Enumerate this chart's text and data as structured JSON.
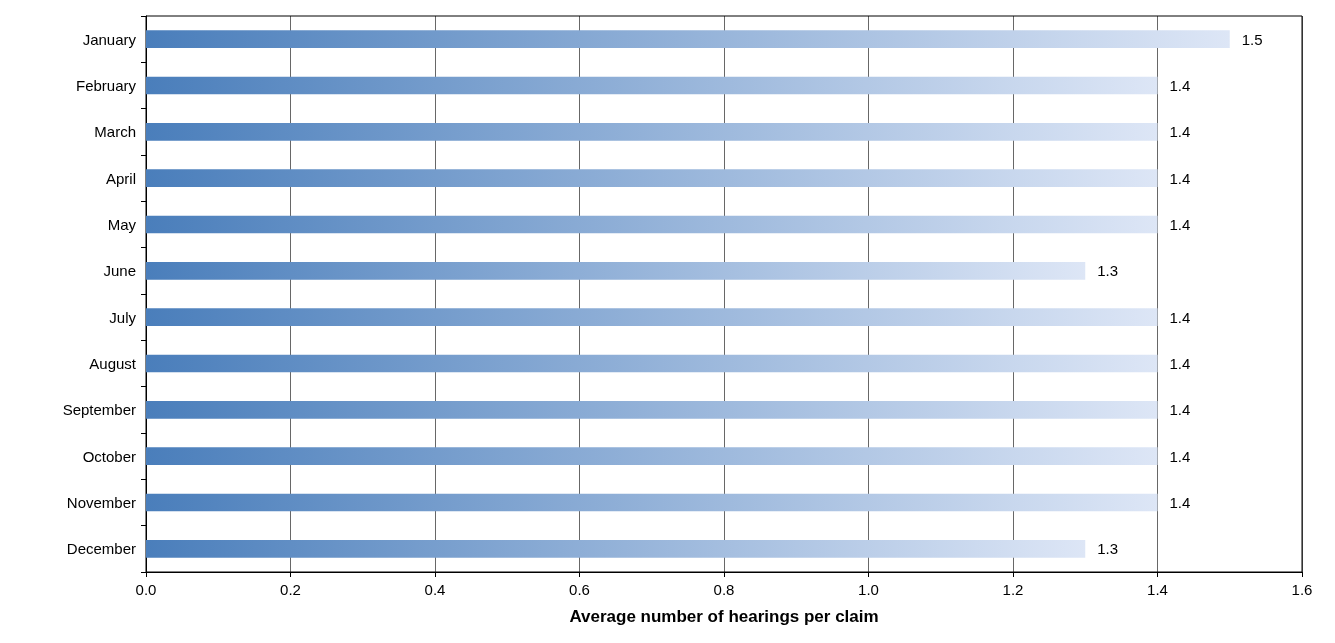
{
  "chart_data": {
    "type": "bar",
    "orientation": "horizontal",
    "xlabel": "Average number of hearings per claim",
    "categories": [
      "January",
      "February",
      "March",
      "April",
      "May",
      "June",
      "July",
      "August",
      "September",
      "October",
      "November",
      "December"
    ],
    "values": [
      1.5,
      1.4,
      1.4,
      1.4,
      1.4,
      1.3,
      1.4,
      1.4,
      1.4,
      1.4,
      1.4,
      1.3
    ],
    "color": "#4a7ebb",
    "data_labels": true,
    "grid": "x",
    "xlim": [
      0,
      1.6
    ],
    "xticks": [
      {
        "value": 0,
        "label": "0.0"
      },
      {
        "value": 0.2,
        "label": "0.2"
      },
      {
        "value": 0.4,
        "label": "0.4"
      },
      {
        "value": 0.6,
        "label": "0.6"
      },
      {
        "value": 0.8,
        "label": "0.8"
      },
      {
        "value": 1,
        "label": "1.0"
      },
      {
        "value": 1.2,
        "label": "1.2"
      },
      {
        "value": 1.4,
        "label": "1.4"
      },
      {
        "value": 1.6,
        "label": "1.6"
      }
    ]
  }
}
